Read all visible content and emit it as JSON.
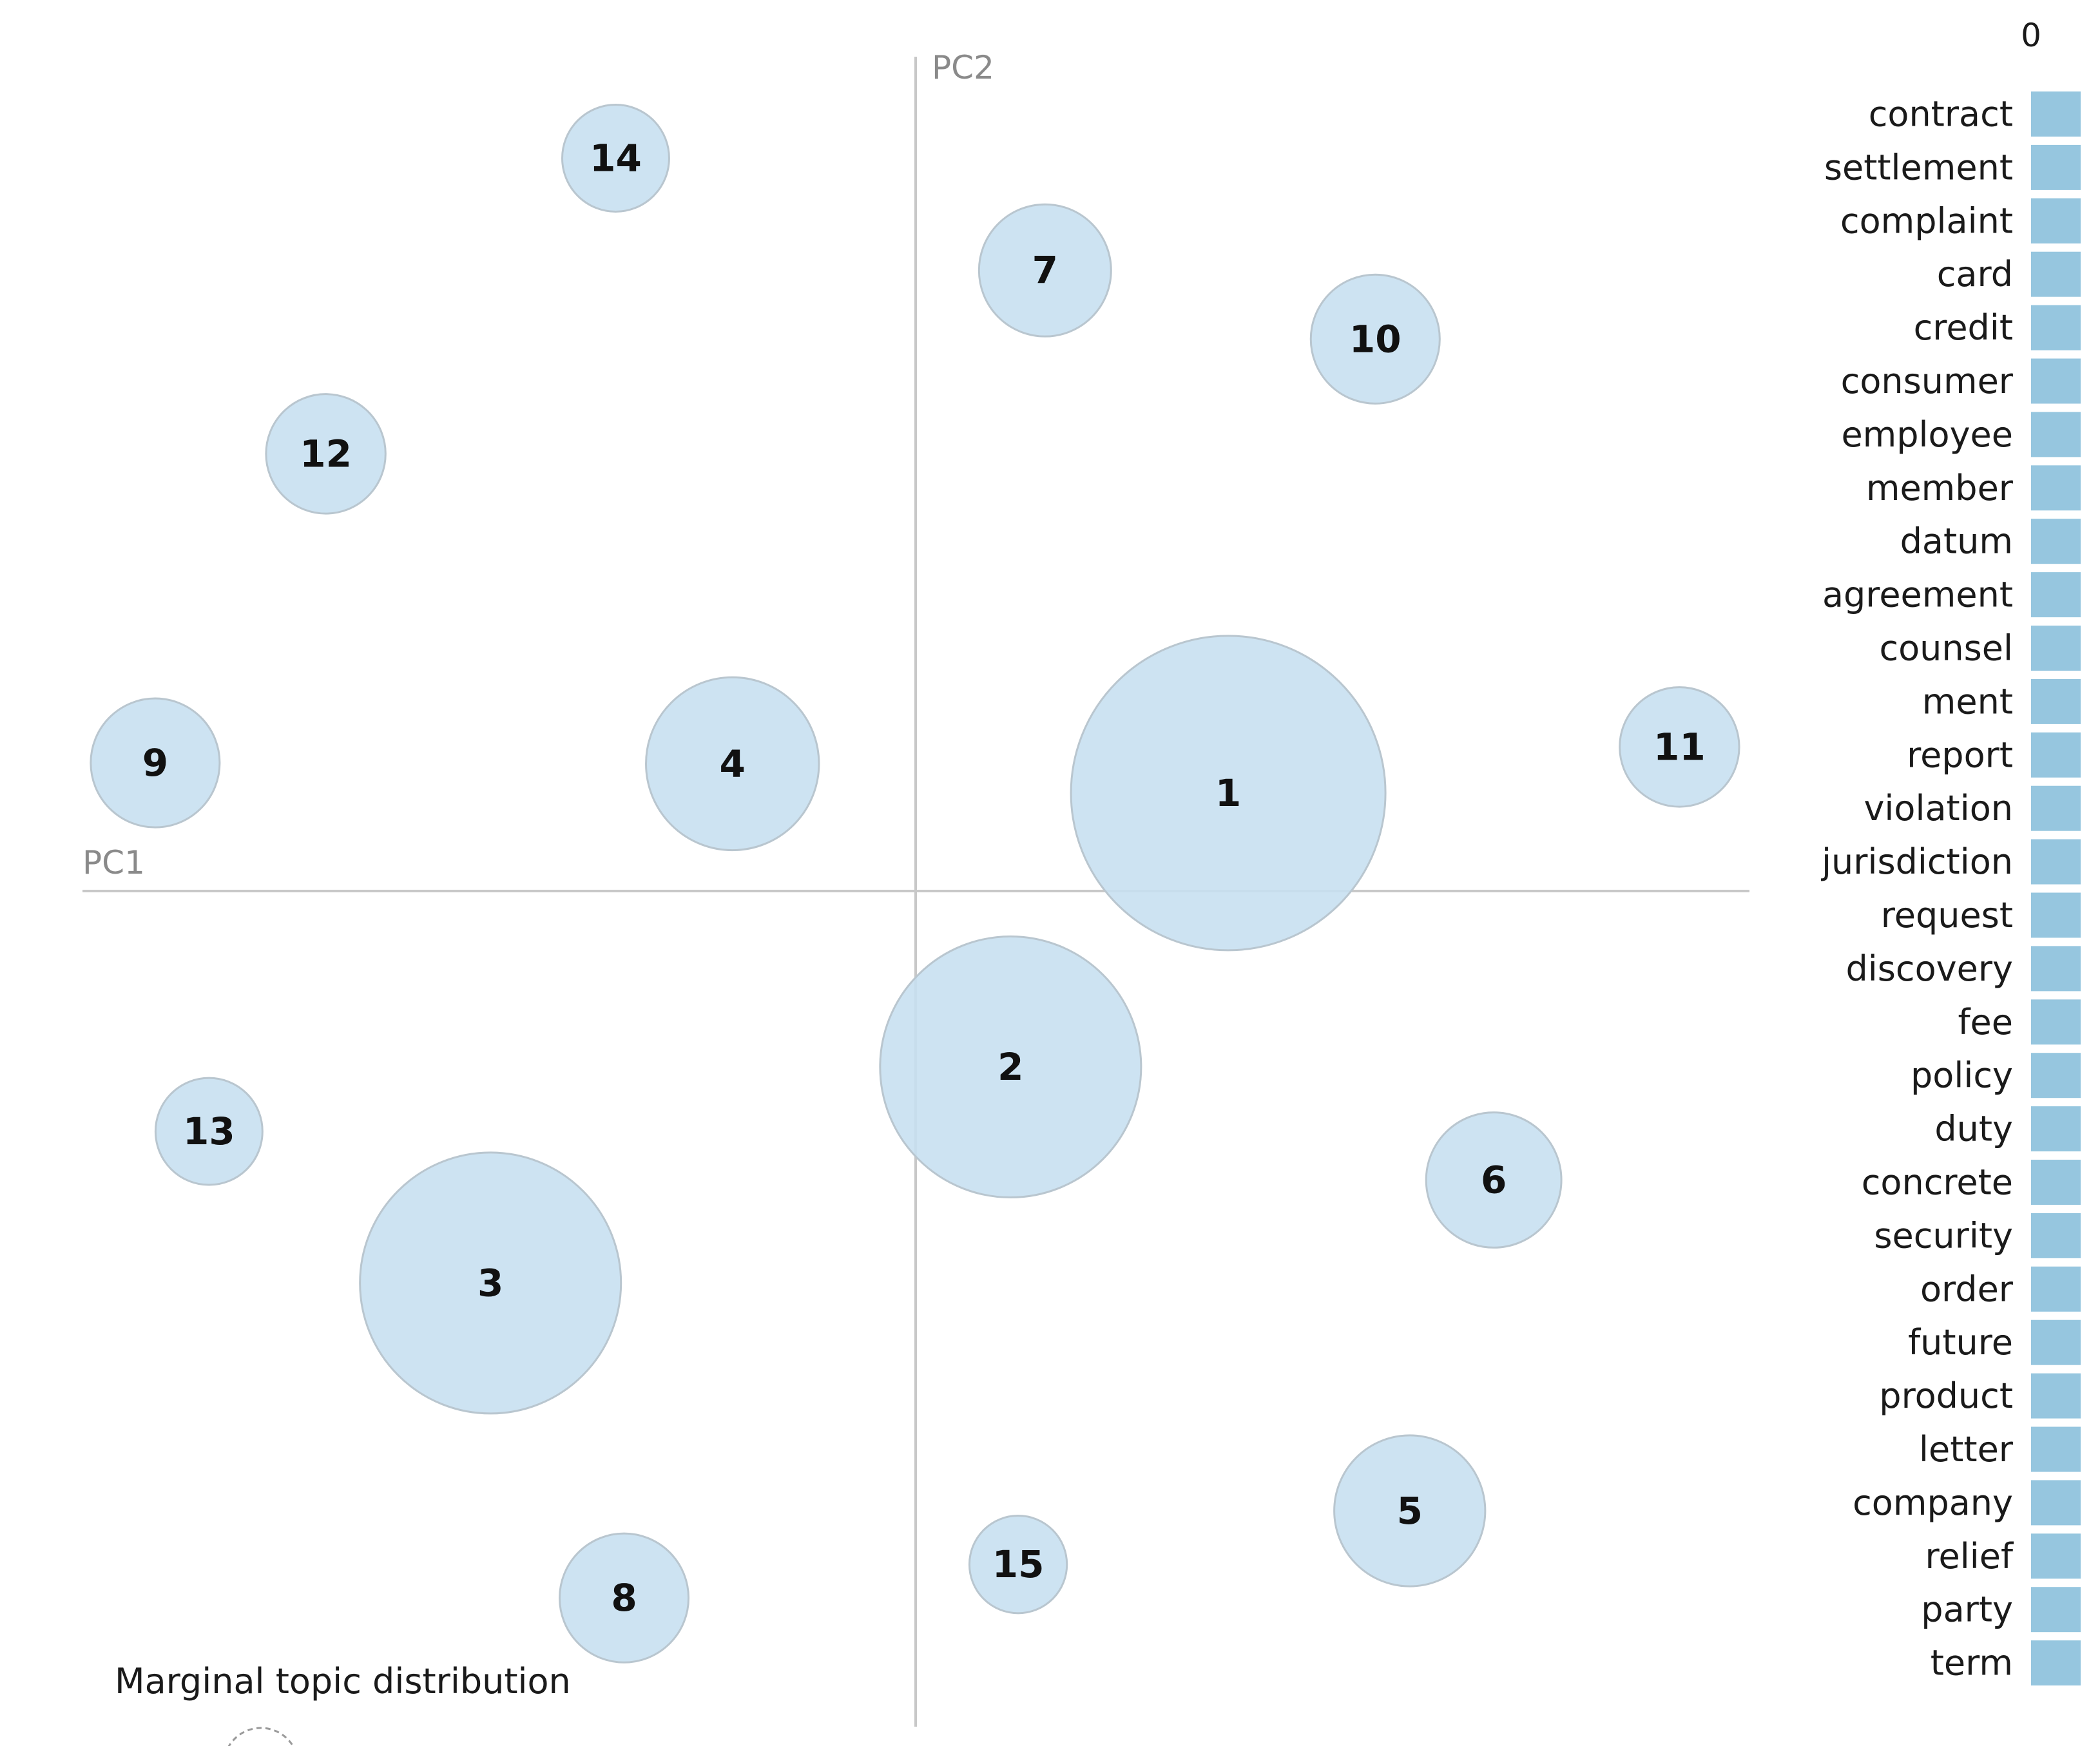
{
  "chart_data": [
    {
      "type": "scatter",
      "subtype": "bubble",
      "xlabel": "PC1",
      "ylabel": "PC2",
      "xlim": [
        -1,
        1
      ],
      "ylim": [
        -1,
        1
      ],
      "grid": false,
      "topics": [
        {
          "label": "1",
          "x": 0.372,
          "y": 0.117,
          "size": 1.0
        },
        {
          "label": "2",
          "x": 0.113,
          "y": -0.21,
          "size": 0.83
        },
        {
          "label": "3",
          "x": -0.506,
          "y": -0.468,
          "size": 0.83
        },
        {
          "label": "4",
          "x": -0.218,
          "y": 0.152,
          "size": 0.55
        },
        {
          "label": "5",
          "x": 0.588,
          "y": -0.74,
          "size": 0.48
        },
        {
          "label": "6",
          "x": 0.688,
          "y": -0.345,
          "size": 0.43
        },
        {
          "label": "7",
          "x": 0.154,
          "y": 0.741,
          "size": 0.42
        },
        {
          "label": "8",
          "x": -0.347,
          "y": -0.844,
          "size": 0.41
        },
        {
          "label": "9",
          "x": -0.905,
          "y": 0.153,
          "size": 0.41
        },
        {
          "label": "10",
          "x": 0.547,
          "y": 0.659,
          "size": 0.41
        },
        {
          "label": "11",
          "x": 0.909,
          "y": 0.172,
          "size": 0.38
        },
        {
          "label": "12",
          "x": -0.702,
          "y": 0.522,
          "size": 0.38
        },
        {
          "label": "13",
          "x": -0.841,
          "y": -0.287,
          "size": 0.34
        },
        {
          "label": "14",
          "x": -0.357,
          "y": 0.875,
          "size": 0.34
        },
        {
          "label": "15",
          "x": 0.122,
          "y": -0.804,
          "size": 0.31
        }
      ],
      "legend": "Marginal topic distribution"
    },
    {
      "type": "bar",
      "orientation": "horizontal",
      "xlim_label": "0",
      "categories": [
        "contract",
        "settlement",
        "complaint",
        "card",
        "credit",
        "consumer",
        "employee",
        "member",
        "datum",
        "agreement",
        "counsel",
        "ment",
        "report",
        "violation",
        "jurisdiction",
        "request",
        "discovery",
        "fee",
        "policy",
        "duty",
        "concrete",
        "security",
        "order",
        "future",
        "product",
        "letter",
        "company",
        "relief",
        "party",
        "term"
      ],
      "values": [
        1,
        1,
        1,
        1,
        1,
        1,
        1,
        1,
        1,
        1,
        1,
        1,
        1,
        1,
        1,
        1,
        1,
        1,
        1,
        1,
        1,
        1,
        1,
        1,
        1,
        1,
        1,
        1,
        1,
        1
      ]
    }
  ],
  "colors": {
    "bubble_fill": "#c6dff0",
    "bubble_stroke": "#b9c6cf",
    "bar_fill": "#96c6df",
    "axis": "#c8c8c8"
  }
}
